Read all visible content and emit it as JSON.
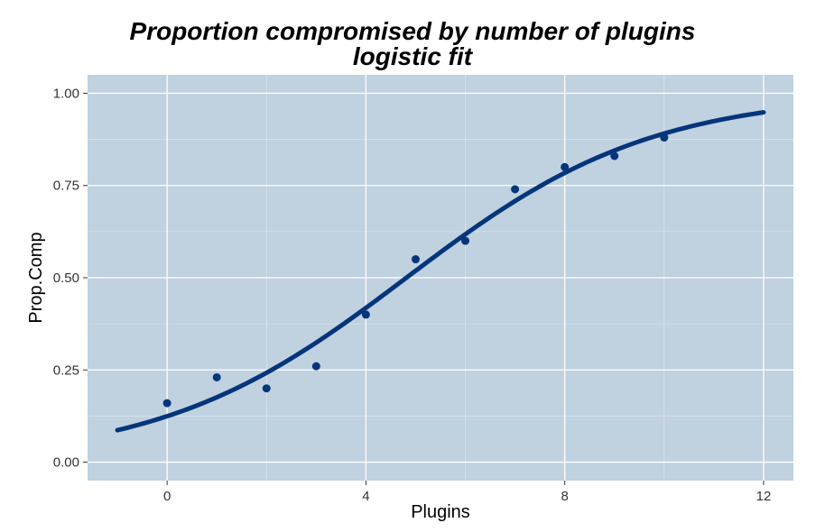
{
  "chart_data": {
    "type": "scatter",
    "title": "Proportion compromised by number of plugins",
    "subtitle": "logistic fit",
    "xlabel": "Plugins",
    "ylabel": "Prop.Comp",
    "xlim": [
      -1.6,
      12.6
    ],
    "ylim": [
      -0.05,
      1.05
    ],
    "x_ticks": [
      0,
      4,
      8,
      12
    ],
    "x_tick_labels": [
      "0",
      "4",
      "8",
      "12"
    ],
    "y_ticks": [
      0,
      0.25,
      0.5,
      0.75,
      1
    ],
    "y_tick_labels": [
      "0.00",
      "0.25",
      "0.50",
      "0.75",
      "1.00"
    ],
    "grid": true,
    "points": {
      "x": [
        0,
        1,
        2,
        3,
        4,
        5,
        6,
        7,
        8,
        9,
        10
      ],
      "y": [
        0.16,
        0.23,
        0.2,
        0.26,
        0.4,
        0.55,
        0.6,
        0.74,
        0.8,
        0.83,
        0.88
      ]
    },
    "fit": {
      "type": "logistic",
      "x_range": [
        -1,
        12
      ],
      "intercept": -1.95,
      "slope": 0.405
    },
    "colors": {
      "panel": "#c0d1e0",
      "grid": "#ffffff",
      "points": "#05357a",
      "fit_line": "#05357a"
    }
  }
}
